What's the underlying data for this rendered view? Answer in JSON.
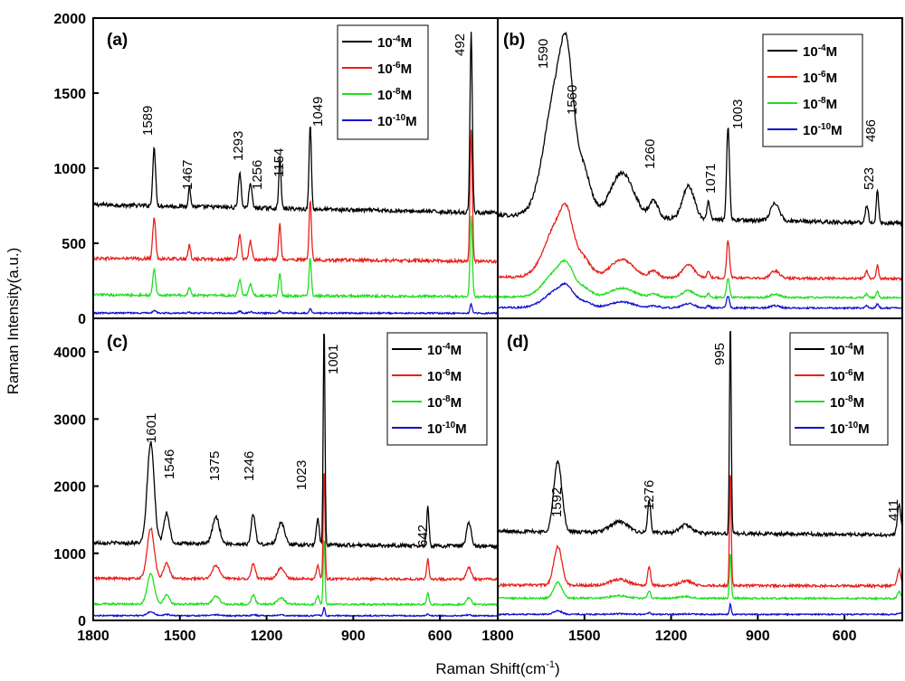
{
  "figure": {
    "ylabel": "Raman Intensity(a.u.)",
    "xlabel": "Raman Shift(cm",
    "xlabel_sup": "-1",
    "xlabel_close": ")"
  },
  "colors": {
    "1e-4": "#000000",
    "1e-6": "#e8201a",
    "1e-8": "#22dd22",
    "1e-10": "#1010d0"
  },
  "legend": {
    "base": "10",
    "unit": "M",
    "exponents": [
      "-4",
      "-6",
      "-8",
      "-10"
    ]
  },
  "chart_data": [
    {
      "panel": "a",
      "type": "line",
      "label": "(a)",
      "xlim": [
        1800,
        400
      ],
      "ylim": [
        0,
        2000
      ],
      "yticks": [
        0,
        500,
        1000,
        1500,
        2000
      ],
      "xticks": [],
      "series": [
        {
          "name": "10^-4 M",
          "offset": 730,
          "scale": 1.0
        },
        {
          "name": "10^-6 M",
          "offset": 390,
          "scale": 0.72
        },
        {
          "name": "10^-8 M",
          "offset": 150,
          "scale": 0.45
        },
        {
          "name": "10^-10 M",
          "offset": 35,
          "scale": 0.05
        }
      ],
      "peaks": [
        {
          "x": 1589,
          "h": 380,
          "w": 5
        },
        {
          "x": 1467,
          "h": 130,
          "w": 4
        },
        {
          "x": 1293,
          "h": 230,
          "w": 5
        },
        {
          "x": 1256,
          "h": 170,
          "w": 5
        },
        {
          "x": 1154,
          "h": 330,
          "w": 4
        },
        {
          "x": 1049,
          "h": 560,
          "w": 4
        },
        {
          "x": 492,
          "h": 1200,
          "w": 4
        }
      ],
      "annotations": [
        "1589",
        "1467",
        "1293",
        "1256",
        "1154",
        "1049",
        "492"
      ]
    },
    {
      "panel": "b",
      "type": "line",
      "label": "(b)",
      "xlim": [
        1800,
        400
      ],
      "ylim": [
        0,
        2000
      ],
      "yticks": [],
      "xticks": [],
      "series": [
        {
          "name": "10^-4 M",
          "offset": 660,
          "scale": 1.0
        },
        {
          "name": "10^-6 M",
          "offset": 270,
          "scale": 0.4
        },
        {
          "name": "10^-8 M",
          "offset": 140,
          "scale": 0.2
        },
        {
          "name": "10^-10 M",
          "offset": 70,
          "scale": 0.13
        }
      ],
      "peaks": [
        {
          "x": 1590,
          "h": 900,
          "w": 45
        },
        {
          "x": 1560,
          "h": 450,
          "w": 20
        },
        {
          "x": 1500,
          "h": 220,
          "w": 25
        },
        {
          "x": 1370,
          "h": 300,
          "w": 40
        },
        {
          "x": 1260,
          "h": 110,
          "w": 15
        },
        {
          "x": 1140,
          "h": 220,
          "w": 20
        },
        {
          "x": 1071,
          "h": 120,
          "w": 5
        },
        {
          "x": 1003,
          "h": 620,
          "w": 5
        },
        {
          "x": 840,
          "h": 120,
          "w": 15
        },
        {
          "x": 523,
          "h": 120,
          "w": 5
        },
        {
          "x": 486,
          "h": 220,
          "w": 4
        }
      ],
      "annotations": [
        "1590",
        "1560",
        "1260",
        "1071",
        "1003",
        "523",
        "486"
      ]
    },
    {
      "panel": "c",
      "type": "line",
      "label": "(c)",
      "xlim": [
        1800,
        400
      ],
      "ylim": [
        0,
        4500
      ],
      "yticks": [
        0,
        1000,
        2000,
        3000,
        4000
      ],
      "xticks": [
        1800,
        1500,
        1200,
        900,
        600
      ],
      "series": [
        {
          "name": "10^-4 M",
          "offset": 1130,
          "scale": 1.0
        },
        {
          "name": "10^-6 M",
          "offset": 620,
          "scale": 0.5
        },
        {
          "name": "10^-8 M",
          "offset": 240,
          "scale": 0.3
        },
        {
          "name": "10^-10 M",
          "offset": 70,
          "scale": 0.04
        }
      ],
      "peaks": [
        {
          "x": 1601,
          "h": 1500,
          "w": 12
        },
        {
          "x": 1546,
          "h": 450,
          "w": 10
        },
        {
          "x": 1375,
          "h": 400,
          "w": 12
        },
        {
          "x": 1246,
          "h": 450,
          "w": 7
        },
        {
          "x": 1150,
          "h": 320,
          "w": 12
        },
        {
          "x": 1023,
          "h": 400,
          "w": 5
        },
        {
          "x": 1001,
          "h": 3300,
          "w": 3
        },
        {
          "x": 642,
          "h": 600,
          "w": 4
        },
        {
          "x": 500,
          "h": 350,
          "w": 8
        }
      ],
      "annotations": [
        "1601",
        "1546",
        "1375",
        "1246",
        "1023",
        "1001",
        "642"
      ]
    },
    {
      "panel": "d",
      "type": "line",
      "label": "(d)",
      "xlim": [
        1800,
        400
      ],
      "ylim": [
        0,
        4500
      ],
      "yticks": [],
      "xticks": [
        1800,
        1500,
        1200,
        900,
        600
      ],
      "series": [
        {
          "name": "10^-4 M",
          "offset": 1300,
          "scale": 1.0
        },
        {
          "name": "10^-6 M",
          "offset": 520,
          "scale": 0.55
        },
        {
          "name": "10^-8 M",
          "offset": 330,
          "scale": 0.22
        },
        {
          "name": "10^-10 M",
          "offset": 90,
          "scale": 0.05
        }
      ],
      "peaks": [
        {
          "x": 1592,
          "h": 1050,
          "w": 14
        },
        {
          "x": 1380,
          "h": 160,
          "w": 30
        },
        {
          "x": 1276,
          "h": 500,
          "w": 5
        },
        {
          "x": 1150,
          "h": 120,
          "w": 20
        },
        {
          "x": 995,
          "h": 3150,
          "w": 3
        },
        {
          "x": 411,
          "h": 450,
          "w": 6
        }
      ],
      "annotations": [
        "1592",
        "1276",
        "995",
        "411"
      ]
    }
  ]
}
